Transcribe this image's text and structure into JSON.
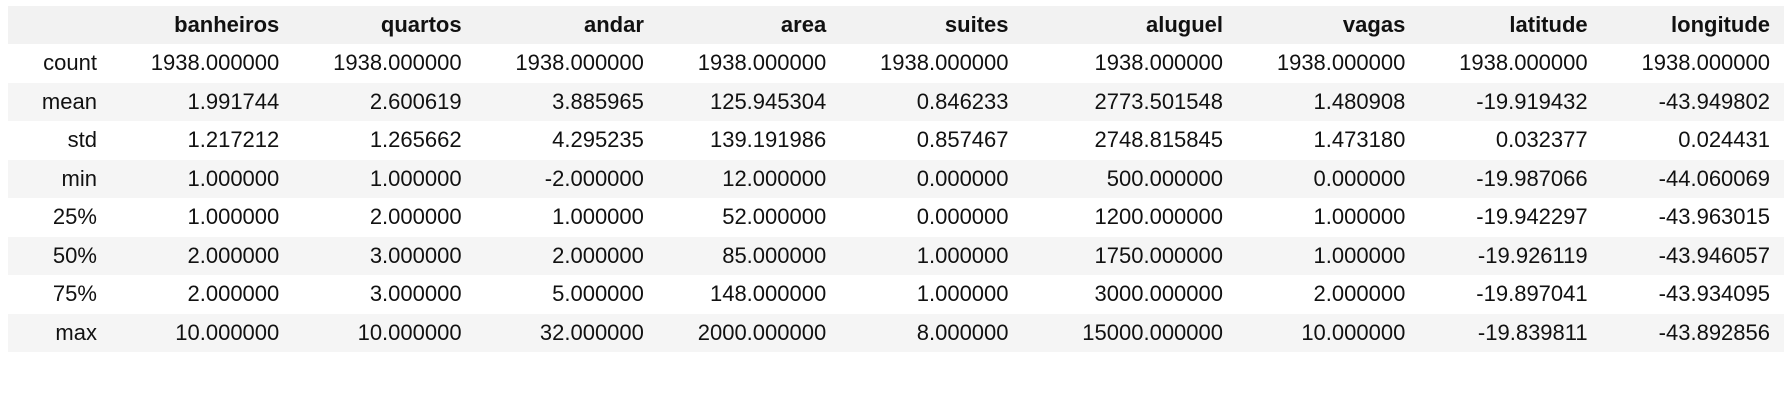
{
  "table": {
    "columns": [
      "",
      "banheiros",
      "quartos",
      "andar",
      "area",
      "suites",
      "aluguel",
      "vagas",
      "latitude",
      "longitude"
    ],
    "rows": [
      {
        "label": "count",
        "values": [
          "1938.000000",
          "1938.000000",
          "1938.000000",
          "1938.000000",
          "1938.000000",
          "1938.000000",
          "1938.000000",
          "1938.000000",
          "1938.000000"
        ]
      },
      {
        "label": "mean",
        "values": [
          "1.991744",
          "2.600619",
          "3.885965",
          "125.945304",
          "0.846233",
          "2773.501548",
          "1.480908",
          "-19.919432",
          "-43.949802"
        ]
      },
      {
        "label": "std",
        "values": [
          "1.217212",
          "1.265662",
          "4.295235",
          "139.191986",
          "0.857467",
          "2748.815845",
          "1.473180",
          "0.032377",
          "0.024431"
        ]
      },
      {
        "label": "min",
        "values": [
          "1.000000",
          "1.000000",
          "-2.000000",
          "12.000000",
          "0.000000",
          "500.000000",
          "0.000000",
          "-19.987066",
          "-44.060069"
        ]
      },
      {
        "label": "25%",
        "values": [
          "1.000000",
          "2.000000",
          "1.000000",
          "52.000000",
          "0.000000",
          "1200.000000",
          "1.000000",
          "-19.942297",
          "-43.963015"
        ]
      },
      {
        "label": "50%",
        "values": [
          "2.000000",
          "3.000000",
          "2.000000",
          "85.000000",
          "1.000000",
          "1750.000000",
          "1.000000",
          "-19.926119",
          "-43.946057"
        ]
      },
      {
        "label": "75%",
        "values": [
          "2.000000",
          "3.000000",
          "5.000000",
          "148.000000",
          "1.000000",
          "3000.000000",
          "2.000000",
          "-19.897041",
          "-43.934095"
        ]
      },
      {
        "label": "max",
        "values": [
          "10.000000",
          "10.000000",
          "32.000000",
          "2000.000000",
          "8.000000",
          "15000.000000",
          "10.000000",
          "-19.839811",
          "-43.892856"
        ]
      }
    ]
  }
}
